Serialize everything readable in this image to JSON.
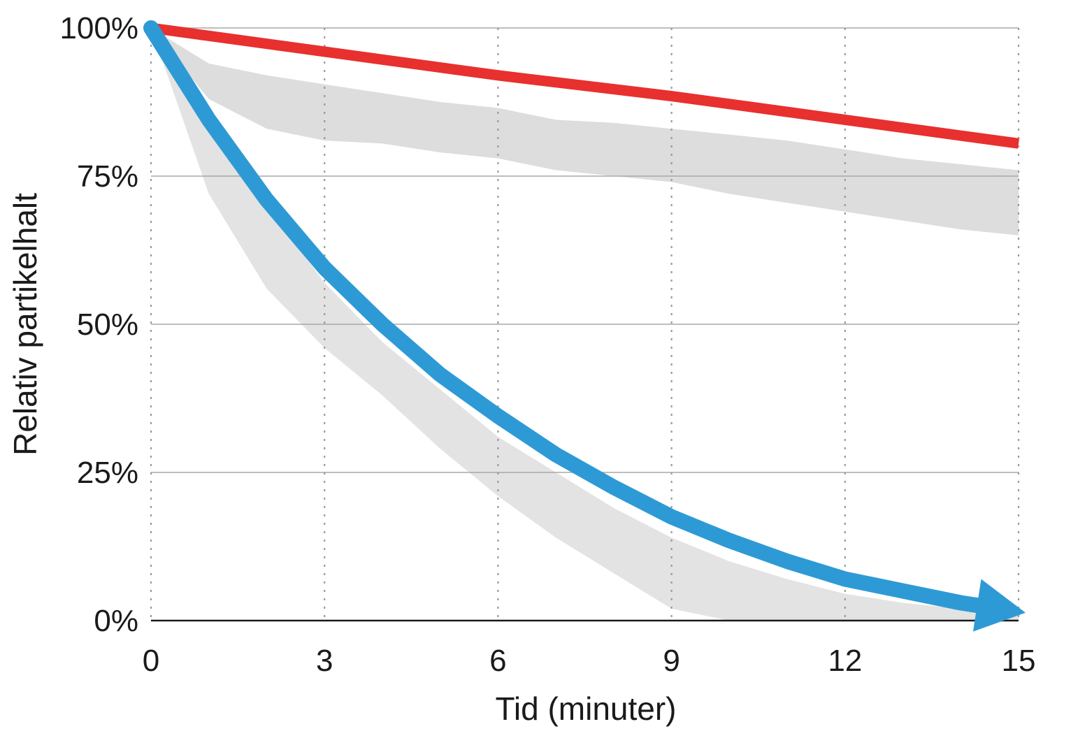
{
  "chart_data": {
    "type": "line",
    "title": "",
    "xlabel": "Tid (minuter)",
    "ylabel": "Relativ partikelhalt",
    "xlim": [
      0,
      15
    ],
    "ylim": [
      0,
      100
    ],
    "x_ticks": [
      0,
      3,
      6,
      9,
      12,
      15
    ],
    "x_tick_labels": [
      "0",
      "3",
      "6",
      "9",
      "12",
      "15"
    ],
    "y_ticks": [
      0,
      25,
      50,
      75,
      100
    ],
    "y_tick_labels": [
      "0%",
      "25%",
      "50%",
      "75%",
      "100%"
    ],
    "grid": {
      "horizontal": true,
      "vertical": true,
      "vertical_style": "dotted"
    },
    "legend": "none",
    "series": [
      {
        "color": "#e8302e",
        "x": [
          0,
          3,
          6,
          9,
          12,
          15
        ],
        "y": [
          100,
          96,
          92,
          88.5,
          84.5,
          80.5
        ]
      },
      {
        "color": "#2d9ad6",
        "style": "arrow",
        "x": [
          0,
          1,
          2,
          3,
          4,
          5,
          6,
          7,
          8,
          9,
          10,
          11,
          12,
          13,
          14,
          15
        ],
        "y": [
          100,
          84.5,
          71,
          59.5,
          50,
          41.5,
          34.5,
          28,
          22.5,
          17.5,
          13.5,
          10,
          7,
          5,
          3,
          1.5
        ]
      }
    ],
    "bands": [
      {
        "color": "#d7d7d7",
        "x": [
          0,
          1,
          2,
          3,
          4,
          5,
          6,
          7,
          8,
          9,
          10,
          11,
          12,
          13,
          14,
          15
        ],
        "upper": [
          100,
          94,
          92,
          90.5,
          89,
          87.5,
          86.5,
          84.5,
          84,
          83,
          82,
          81,
          79.5,
          78,
          77,
          76
        ],
        "lower": [
          100,
          88,
          83,
          81,
          80.5,
          79,
          78,
          76,
          75,
          74,
          72,
          70.5,
          69,
          67.5,
          66,
          65
        ]
      },
      {
        "color": "#dedede",
        "x": [
          0,
          1,
          2,
          3,
          4,
          5,
          6,
          7,
          8,
          9,
          10,
          11,
          12,
          13,
          14,
          15
        ],
        "upper": [
          100,
          84,
          70,
          57,
          47,
          39,
          31,
          25,
          19,
          14,
          10,
          7,
          4.5,
          3,
          2,
          1
        ],
        "lower": [
          100,
          72,
          56,
          46,
          38,
          29,
          21,
          14,
          8,
          2,
          0,
          0,
          0,
          0,
          0,
          0
        ]
      }
    ]
  }
}
